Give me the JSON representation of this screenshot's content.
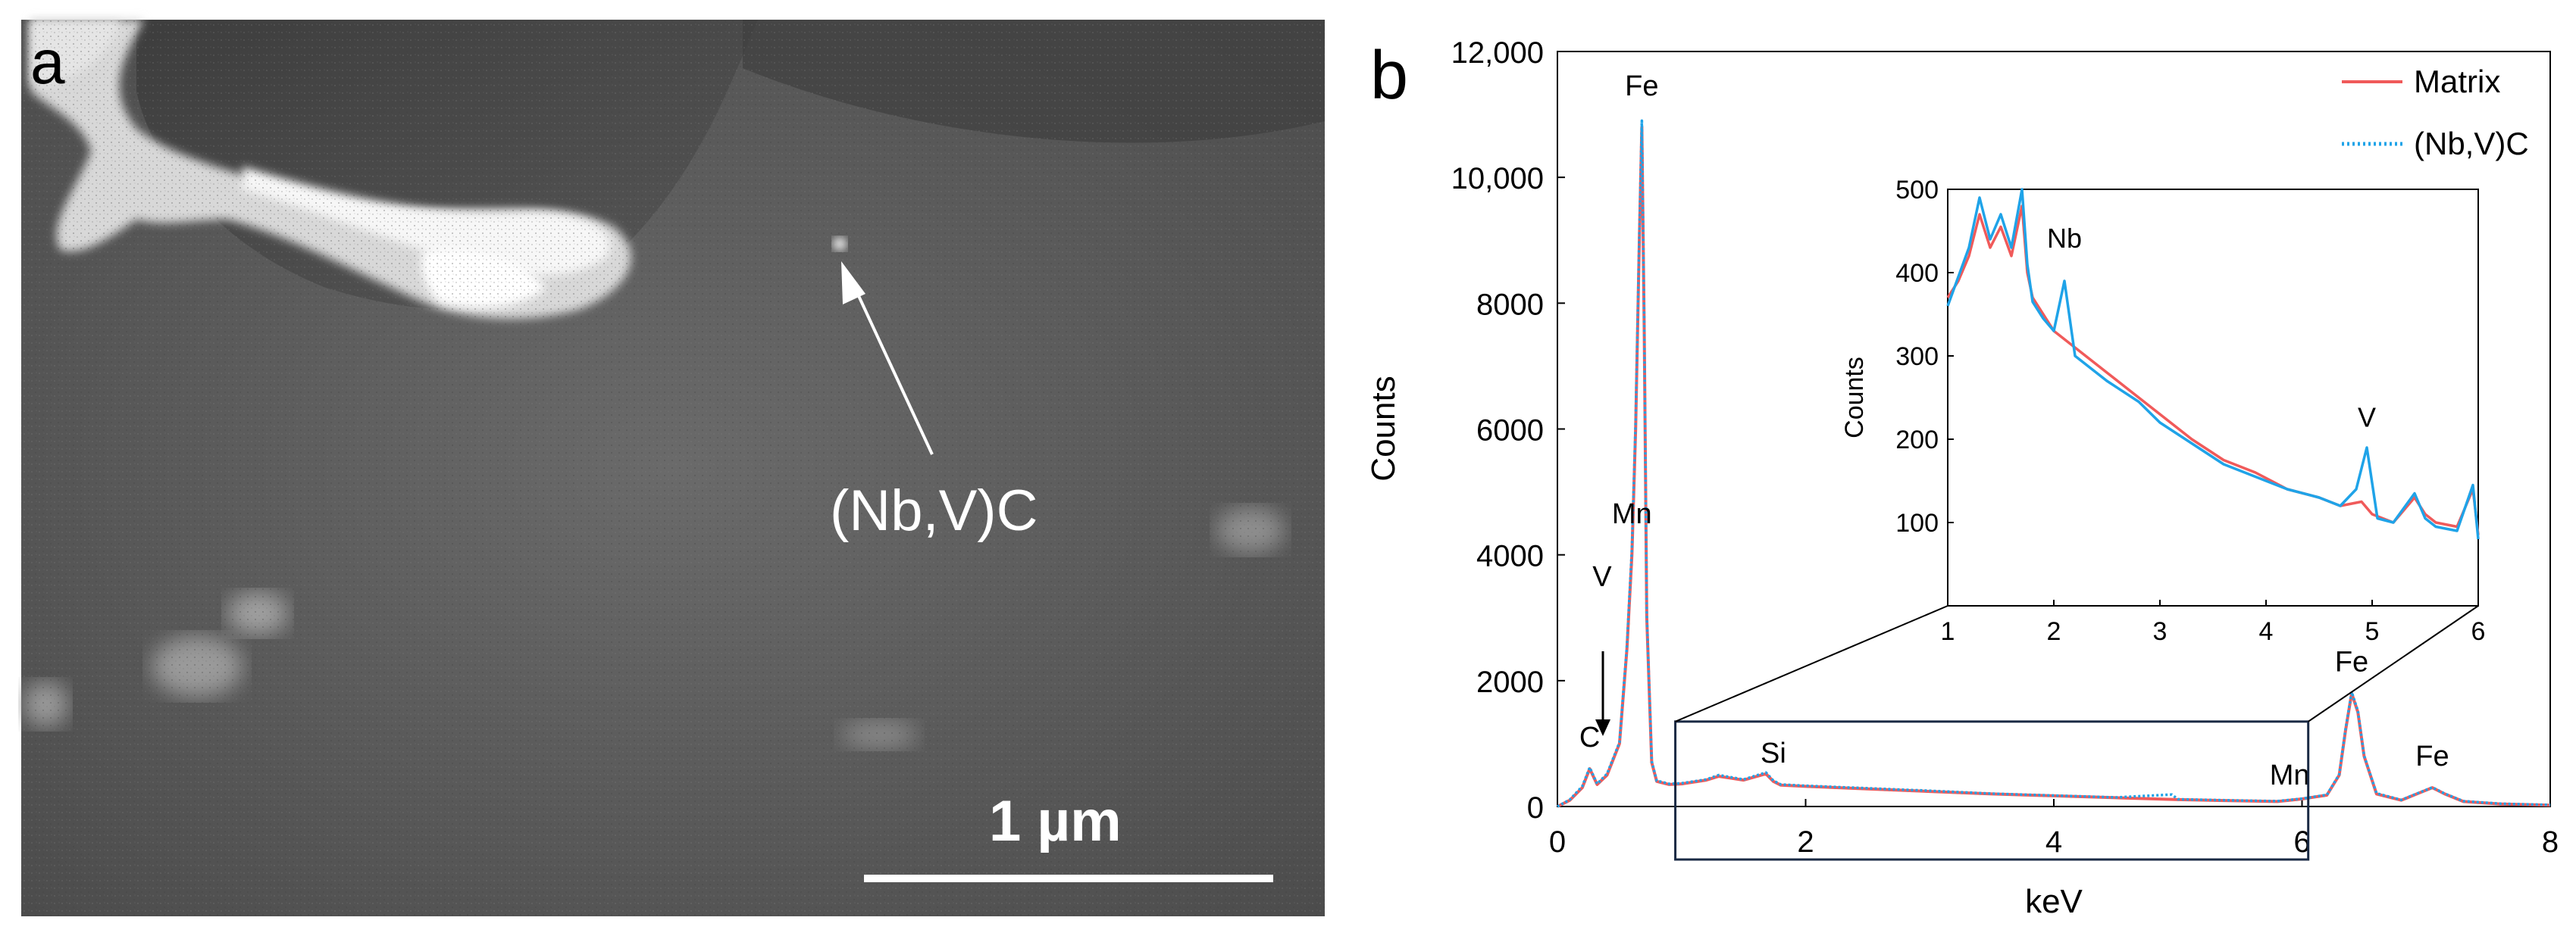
{
  "panel_a": {
    "panel_letter": "a",
    "arrow_label": "(Nb,V)C",
    "scalebar_label": "1 µm"
  },
  "panel_b": {
    "panel_letter": "b"
  },
  "chart_data": [
    {
      "type": "line",
      "title": "",
      "xlabel": "keV",
      "ylabel": "Counts",
      "xlim": [
        0,
        8
      ],
      "ylim": [
        0,
        12000
      ],
      "xticks": [
        0,
        2,
        4,
        6,
        8
      ],
      "yticks": [
        0,
        2000,
        4000,
        6000,
        8000,
        10000,
        12000
      ],
      "ytick_labels": [
        "0",
        "2000",
        "4000",
        "6000",
        "8000",
        "10,000",
        "12,000"
      ],
      "grid": false,
      "legend_position": "top-right",
      "series": [
        {
          "name": "Matrix",
          "color": "#f05a5a",
          "style": "solid",
          "x": [
            0,
            0.1,
            0.2,
            0.26,
            0.32,
            0.4,
            0.5,
            0.56,
            0.6,
            0.63,
            0.66,
            0.68,
            0.7,
            0.72,
            0.76,
            0.8,
            0.9,
            1.0,
            1.2,
            1.3,
            1.5,
            1.68,
            1.74,
            1.8,
            2.0,
            2.5,
            3.0,
            3.5,
            4.0,
            4.5,
            5.0,
            5.5,
            5.8,
            5.9,
            6.0,
            6.2,
            6.3,
            6.35,
            6.4,
            6.45,
            6.5,
            6.6,
            6.8,
            6.95,
            7.05,
            7.15,
            7.3,
            7.6,
            8.0
          ],
          "y": [
            0,
            100,
            300,
            600,
            350,
            500,
            1000,
            2500,
            4000,
            6000,
            9000,
            10800,
            7500,
            3000,
            700,
            400,
            350,
            360,
            420,
            480,
            420,
            520,
            400,
            340,
            320,
            280,
            240,
            200,
            170,
            140,
            110,
            90,
            80,
            100,
            120,
            180,
            500,
            1200,
            1800,
            1500,
            800,
            200,
            100,
            220,
            300,
            200,
            80,
            40,
            20
          ]
        },
        {
          "name": "(Nb,V)C",
          "color": "#1fa3e8",
          "style": "dotted",
          "x": [
            0,
            0.1,
            0.2,
            0.26,
            0.32,
            0.4,
            0.5,
            0.56,
            0.6,
            0.63,
            0.66,
            0.68,
            0.7,
            0.72,
            0.76,
            0.8,
            0.9,
            1.0,
            1.2,
            1.3,
            1.5,
            1.68,
            1.74,
            1.8,
            2.0,
            2.5,
            3.0,
            3.5,
            4.0,
            4.5,
            4.95,
            5.0,
            5.5,
            5.8,
            5.9,
            6.0,
            6.2,
            6.3,
            6.35,
            6.4,
            6.45,
            6.5,
            6.6,
            6.8,
            6.95,
            7.05,
            7.15,
            7.3,
            7.6,
            8.0
          ],
          "y": [
            0,
            110,
            320,
            620,
            360,
            520,
            1020,
            2550,
            4100,
            6100,
            9100,
            10900,
            7600,
            3050,
            720,
            410,
            360,
            370,
            430,
            500,
            430,
            540,
            410,
            350,
            330,
            290,
            250,
            205,
            175,
            145,
            190,
            115,
            95,
            85,
            105,
            125,
            185,
            510,
            1220,
            1820,
            1520,
            810,
            210,
            105,
            225,
            305,
            205,
            85,
            45,
            25
          ]
        }
      ],
      "annotations": [
        {
          "text": "Fe",
          "x": 0.68,
          "y": 11300
        },
        {
          "text": "Mn",
          "x": 0.6,
          "y": 4500
        },
        {
          "text": "V",
          "x": 0.36,
          "y": 3500
        },
        {
          "text": "C",
          "x": 0.26,
          "y": 950
        },
        {
          "text": "Si",
          "x": 1.74,
          "y": 700
        },
        {
          "text": "Mn",
          "x": 5.9,
          "y": 350
        },
        {
          "text": "Fe",
          "x": 6.4,
          "y": 2150
        },
        {
          "text": "Fe",
          "x": 7.05,
          "y": 650
        }
      ],
      "zoom_box": {
        "x": [
          0.95,
          6.05
        ],
        "y": [
          0,
          1350
        ]
      }
    },
    {
      "type": "line",
      "title": "",
      "xlabel": "",
      "ylabel": "Counts",
      "xlim": [
        1,
        6
      ],
      "ylim": [
        0,
        500
      ],
      "xticks": [
        1,
        2,
        3,
        4,
        5,
        6
      ],
      "yticks": [
        100,
        200,
        300,
        400,
        500
      ],
      "grid": false,
      "series": [
        {
          "name": "Matrix",
          "color": "#f05a5a",
          "style": "solid",
          "x": [
            1.0,
            1.1,
            1.2,
            1.3,
            1.4,
            1.5,
            1.6,
            1.7,
            1.75,
            1.8,
            1.9,
            2.0,
            2.2,
            2.5,
            2.8,
            3.0,
            3.3,
            3.6,
            3.9,
            4.2,
            4.5,
            4.7,
            4.9,
            5.0,
            5.2,
            5.4,
            5.5,
            5.6,
            5.8,
            5.95,
            6.0
          ],
          "y": [
            370,
            390,
            420,
            470,
            430,
            455,
            420,
            480,
            400,
            370,
            350,
            330,
            310,
            280,
            250,
            230,
            200,
            175,
            160,
            140,
            130,
            120,
            125,
            110,
            100,
            130,
            110,
            100,
            95,
            140,
            85
          ]
        },
        {
          "name": "(Nb,V)C",
          "color": "#1fa3e8",
          "style": "solid",
          "x": [
            1.0,
            1.1,
            1.2,
            1.3,
            1.4,
            1.5,
            1.6,
            1.7,
            1.75,
            1.8,
            1.9,
            2.0,
            2.1,
            2.2,
            2.5,
            2.8,
            3.0,
            3.3,
            3.6,
            3.9,
            4.2,
            4.5,
            4.7,
            4.85,
            4.95,
            5.05,
            5.2,
            5.4,
            5.5,
            5.6,
            5.8,
            5.95,
            6.0
          ],
          "y": [
            360,
            395,
            430,
            490,
            440,
            470,
            430,
            500,
            410,
            365,
            345,
            330,
            390,
            300,
            270,
            245,
            220,
            195,
            170,
            155,
            140,
            130,
            120,
            140,
            190,
            105,
            100,
            135,
            105,
            95,
            90,
            145,
            80
          ]
        }
      ],
      "annotations": [
        {
          "text": "Nb",
          "x": 2.1,
          "y": 430
        },
        {
          "text": "V",
          "x": 4.95,
          "y": 215
        }
      ]
    }
  ]
}
